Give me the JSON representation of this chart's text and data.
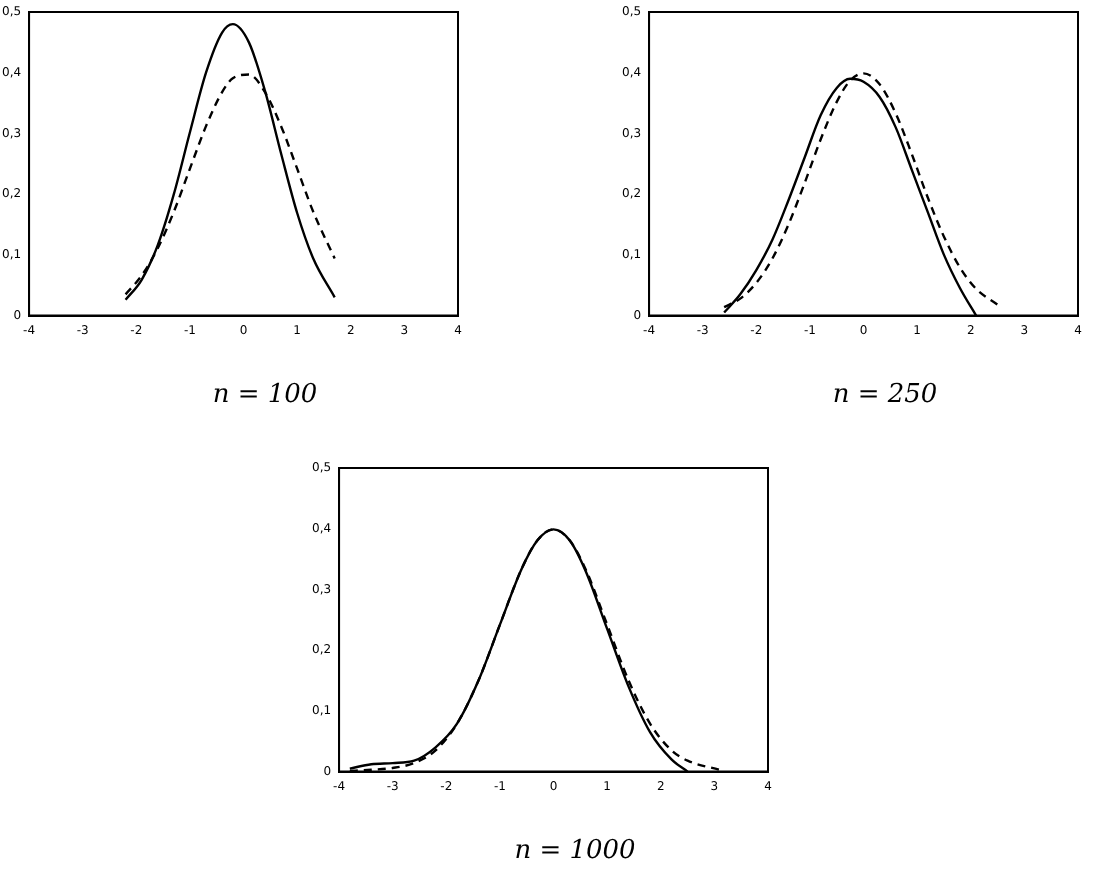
{
  "chart_data": [
    {
      "type": "line",
      "title": "n = 100",
      "x": [
        -2.2,
        -1.9,
        -1.6,
        -1.3,
        -1.0,
        -0.7,
        -0.4,
        -0.2,
        0.1,
        0.4,
        0.7,
        1.0,
        1.3,
        1.7
      ],
      "xlim": [
        -4,
        4
      ],
      "xticks": [
        -4,
        -3,
        -2,
        -1,
        0,
        1,
        2,
        3,
        4
      ],
      "ylim": [
        0,
        0.5
      ],
      "yticks": [
        {
          "value": 0,
          "label": "0"
        },
        {
          "value": 0.1,
          "label": "0,1"
        },
        {
          "value": 0.2,
          "label": "0,2"
        },
        {
          "value": 0.3,
          "label": "0,3"
        },
        {
          "value": 0.4,
          "label": "0,4"
        },
        {
          "value": 0.5,
          "label": "0,5"
        }
      ],
      "grid": false,
      "legend": false,
      "marker": "none",
      "series": [
        {
          "color": "#000000",
          "line_style": "solid",
          "values": [
            0.026,
            0.059,
            0.116,
            0.2,
            0.302,
            0.4,
            0.466,
            0.48,
            0.45,
            0.37,
            0.267,
            0.169,
            0.094,
            0.03
          ]
        },
        {
          "color": "#000000",
          "line_style": "dashed",
          "values": [
            0.035,
            0.066,
            0.111,
            0.171,
            0.242,
            0.312,
            0.368,
            0.391,
            0.397,
            0.368,
            0.312,
            0.242,
            0.171,
            0.094
          ]
        }
      ]
    },
    {
      "type": "line",
      "title": "n = 250",
      "x": [
        -2.6,
        -2.3,
        -2.0,
        -1.7,
        -1.4,
        -1.1,
        -0.8,
        -0.5,
        -0.25,
        0,
        0.3,
        0.6,
        0.9,
        1.2,
        1.5,
        1.8,
        2.1,
        2.5
      ],
      "xlim": [
        -4,
        4
      ],
      "xticks": [
        -4,
        -3,
        -2,
        -1,
        0,
        1,
        2,
        3,
        4
      ],
      "ylim": [
        0,
        0.5
      ],
      "yticks": [
        {
          "value": 0,
          "label": "0"
        },
        {
          "value": 0.1,
          "label": "0,1"
        },
        {
          "value": 0.2,
          "label": "0,2"
        },
        {
          "value": 0.3,
          "label": "0,3"
        },
        {
          "value": 0.4,
          "label": "0,4"
        },
        {
          "value": 0.5,
          "label": "0,5"
        }
      ],
      "grid": false,
      "legend": false,
      "marker": "none",
      "series": [
        {
          "color": "#000000",
          "line_style": "solid",
          "values": [
            0.005,
            0.035,
            0.075,
            0.125,
            0.19,
            0.26,
            0.33,
            0.375,
            0.39,
            0.385,
            0.36,
            0.31,
            0.24,
            0.17,
            0.1,
            0.045,
            0.0,
            null
          ]
        },
        {
          "color": "#000000",
          "line_style": "dashed",
          "values": [
            0.014,
            0.028,
            0.054,
            0.094,
            0.15,
            0.218,
            0.29,
            0.352,
            0.387,
            0.399,
            0.381,
            0.333,
            0.266,
            0.194,
            0.13,
            0.079,
            0.044,
            0.018
          ]
        }
      ]
    },
    {
      "type": "line",
      "title": "n = 1000",
      "x": [
        -3.8,
        -3.4,
        -3.0,
        -2.6,
        -2.2,
        -1.8,
        -1.4,
        -1.0,
        -0.6,
        -0.3,
        0,
        0.3,
        0.6,
        1.0,
        1.4,
        1.8,
        2.2,
        2.5,
        3.1
      ],
      "xlim": [
        -4,
        4
      ],
      "xticks": [
        -4,
        -3,
        -2,
        -1,
        0,
        1,
        2,
        3,
        4
      ],
      "ylim": [
        0,
        0.5
      ],
      "yticks": [
        {
          "value": 0,
          "label": "0"
        },
        {
          "value": 0.1,
          "label": "0,1"
        },
        {
          "value": 0.2,
          "label": "0,2"
        },
        {
          "value": 0.3,
          "label": "0,3"
        },
        {
          "value": 0.4,
          "label": "0,4"
        },
        {
          "value": 0.5,
          "label": "0,5"
        }
      ],
      "grid": false,
      "legend": false,
      "marker": "none",
      "series": [
        {
          "color": "#000000",
          "line_style": "solid",
          "values": [
            0.005,
            0.012,
            0.014,
            0.018,
            0.04,
            0.079,
            0.15,
            0.242,
            0.333,
            0.381,
            0.399,
            0.381,
            0.33,
            0.235,
            0.14,
            0.065,
            0.02,
            0.0,
            null
          ]
        },
        {
          "color": "#000000",
          "line_style": "dashed",
          "values": [
            0.001,
            0.003,
            0.006,
            0.014,
            0.035,
            0.079,
            0.15,
            0.242,
            0.333,
            0.381,
            0.399,
            0.381,
            0.333,
            0.242,
            0.15,
            0.079,
            0.035,
            0.018,
            0.003
          ]
        }
      ]
    }
  ]
}
